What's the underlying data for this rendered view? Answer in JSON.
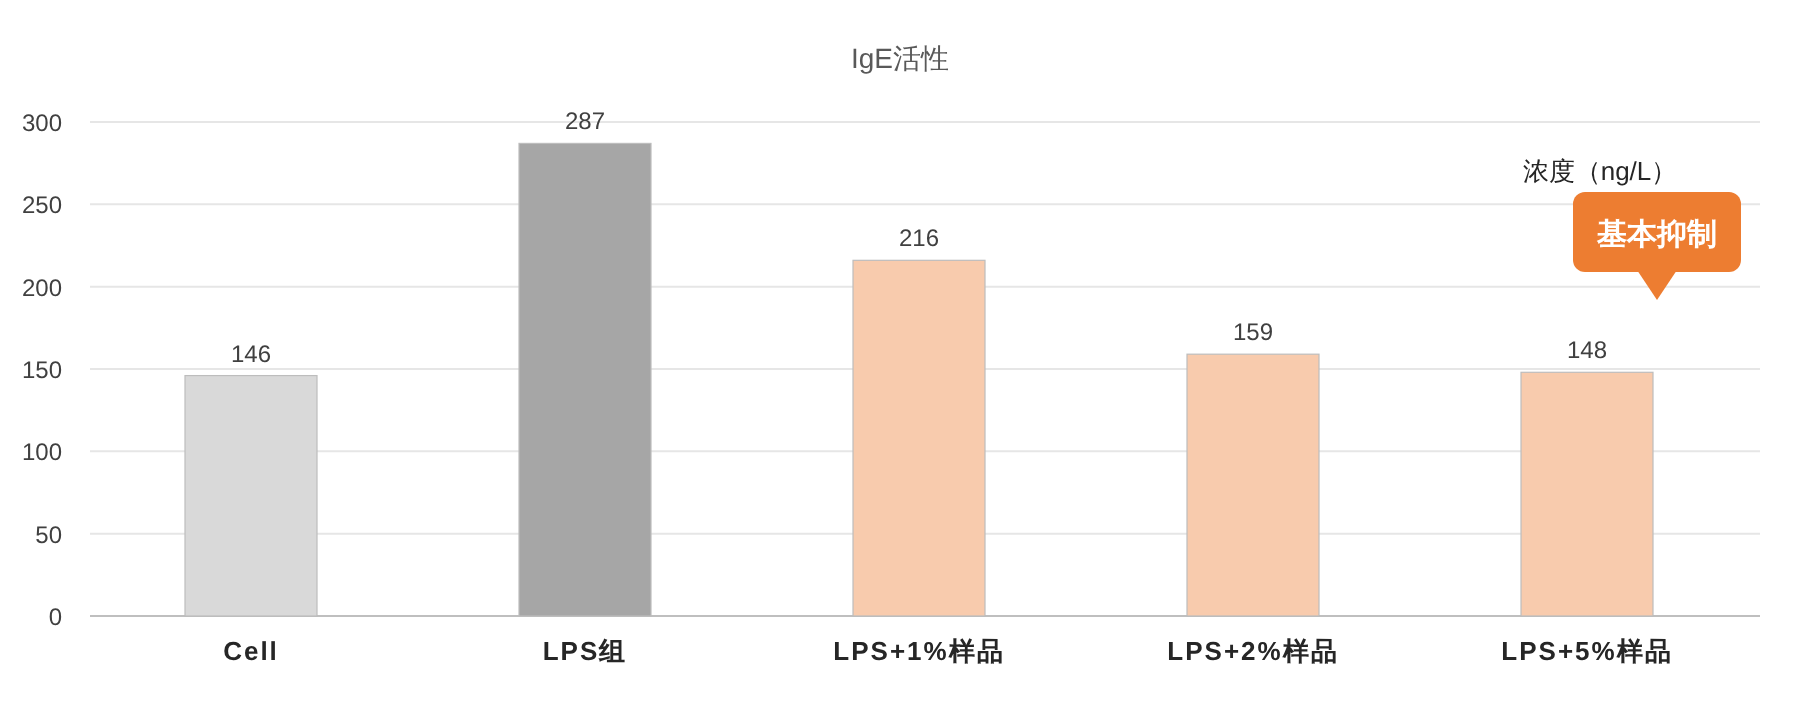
{
  "chart_data": {
    "type": "bar",
    "title": "IgE活性",
    "categories": [
      "Cell",
      "LPS组",
      "LPS+1%样品",
      "LPS+2%样品",
      "LPS+5%样品"
    ],
    "values": [
      146,
      287,
      216,
      159,
      148
    ],
    "colors": [
      "#d9d9d9",
      "#a6a6a6",
      "#f8cbad",
      "#f8cbad",
      "#f8cbad"
    ],
    "ylim": [
      0,
      300
    ],
    "yticks": [
      0,
      50,
      100,
      150,
      200,
      250,
      300
    ],
    "grid": "y",
    "data_labels": true,
    "annotations": [
      "浓度（ng/L）",
      "基本抑制"
    ]
  }
}
